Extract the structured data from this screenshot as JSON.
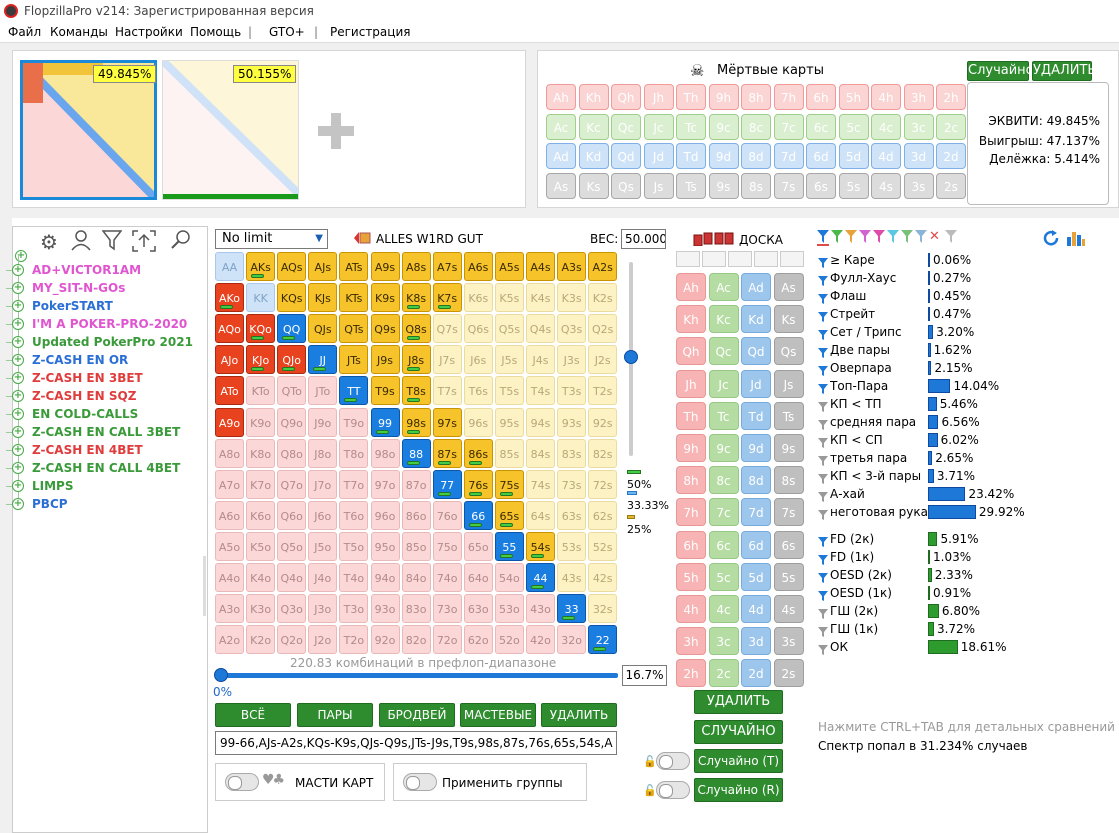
{
  "window_title": "FlopzillaPro v214: Зарегистрированная версия",
  "menu": [
    "Файл",
    "Команды",
    "Настройки",
    "Помощь",
    "|",
    "GTO+",
    "|",
    "Регистрация"
  ],
  "range1_pct": "49.845%",
  "range2_pct": "50.155%",
  "dead_cards_title": "Мёртвые карты",
  "random_btn": "Случайно",
  "delete_btn": "УДАЛИТЬ",
  "equity": {
    "eq": "ЭКВИТИ: 49.845%",
    "win": "Выигрыш: 47.137%",
    "tie": "Делёжка: 5.414%"
  },
  "ranks": [
    "A",
    "K",
    "Q",
    "J",
    "T",
    "9",
    "8",
    "7",
    "6",
    "5",
    "4",
    "3",
    "2"
  ],
  "tree": [
    {
      "label": "AD+VICTOR1AM",
      "color": "#e056d0"
    },
    {
      "label": "MY_SIT-N-GOs",
      "color": "#e056d0"
    },
    {
      "label": "PokerSTART",
      "color": "#2b6fd6"
    },
    {
      "label": "I'M A POKER-PRO-2020",
      "color": "#e056d0"
    },
    {
      "label": "Updated PokerPro 2021",
      "color": "#3a9a3a"
    },
    {
      "label": "Z-CASH EN OR",
      "color": "#2b6fd6"
    },
    {
      "label": "Z-CASH EN 3BET",
      "color": "#e03c3c"
    },
    {
      "label": "Z-CASH EN SQZ",
      "color": "#e03c3c"
    },
    {
      "label": "EN COLD-CALLS",
      "color": "#3a9a3a"
    },
    {
      "label": "Z-CASH EN CALL 3BET",
      "color": "#3a9a3a"
    },
    {
      "label": "Z-CASH EN 4BET",
      "color": "#e03c3c"
    },
    {
      "label": "Z-CASH EN CALL 4BET",
      "color": "#3a9a3a"
    },
    {
      "label": "LIMPS",
      "color": "#3a9a3a"
    },
    {
      "label": "PBCP",
      "color": "#2b6fd6"
    }
  ],
  "limit_select": "No limit",
  "range_name": "ALLES W1RD GUT",
  "weight_label": "ВЕС:",
  "weight_value": "50.000",
  "slider_marks": [
    "50%",
    "33.33%",
    "25%"
  ],
  "combos_text": "220.83 комбинаций в префлоп-диапазоне",
  "range_percent_value": "0%",
  "range_percent_box": "16.7%",
  "grid_buttons": [
    "ВСЁ",
    "ПАРЫ",
    "БРОДВЕЙ",
    "МАСТЕВЫЕ",
    "УДАЛИТЬ"
  ],
  "range_string": "99-66,AJs-A2s,KQs-K9s,QJs-Q9s,JTs-J9s,T9s,98s,87s,76s,65s,54s,A",
  "suits_label": "МАСТИ КАРТ",
  "groups_label": "Применить группы",
  "board_title": "ДОСКА",
  "board_delete": "УДАЛИТЬ",
  "board_random": "СЛУЧАЙНО",
  "board_random_t": "Случайно (Т)",
  "board_random_r": "Случайно (R)",
  "stats": [
    {
      "label": "≥ Каре",
      "val": "0.06%",
      "pct": 0.06
    },
    {
      "label": "Фулл-Хаус",
      "val": "0.27%",
      "pct": 0.27
    },
    {
      "label": "Флаш",
      "val": "0.45%",
      "pct": 0.45
    },
    {
      "label": "Стрейт",
      "val": "0.47%",
      "pct": 0.47
    },
    {
      "label": "Сет / Трипс",
      "val": "3.20%",
      "pct": 3.2
    },
    {
      "label": "Две пары",
      "val": "1.62%",
      "pct": 1.62
    },
    {
      "label": "Оверпара",
      "val": "2.15%",
      "pct": 2.15
    },
    {
      "label": "Топ-Пара",
      "val": "14.04%",
      "pct": 14.04
    },
    {
      "label": "КП < ТП",
      "val": "5.46%",
      "pct": 5.46
    },
    {
      "label": "средняя пара",
      "val": "6.56%",
      "pct": 6.56
    },
    {
      "label": "КП < СП",
      "val": "6.02%",
      "pct": 6.02
    },
    {
      "label": "третья пара",
      "val": "2.65%",
      "pct": 2.65
    },
    {
      "label": "КП < 3-й пары",
      "val": "3.71%",
      "pct": 3.71
    },
    {
      "label": "А-хай",
      "val": "23.42%",
      "pct": 23.42
    },
    {
      "label": "неготовая рука",
      "val": "29.92%",
      "pct": 29.92
    }
  ],
  "draws": [
    {
      "label": "FD (2к)",
      "val": "5.91%",
      "pct": 5.91
    },
    {
      "label": "FD (1к)",
      "val": "1.03%",
      "pct": 1.03
    },
    {
      "label": "OESD (2к)",
      "val": "2.33%",
      "pct": 2.33
    },
    {
      "label": "OESD (1к)",
      "val": "0.91%",
      "pct": 0.91
    },
    {
      "label": "ГШ (2к)",
      "val": "6.80%",
      "pct": 6.8
    },
    {
      "label": "ГШ (1к)",
      "val": "3.72%",
      "pct": 3.72
    },
    {
      "label": "ОК",
      "val": "18.61%",
      "pct": 18.61
    }
  ],
  "hint_text": "Нажмите CTRL+TAB для детальных сравнений",
  "hit_text": "Спектр попал в 31.234% случаев"
}
